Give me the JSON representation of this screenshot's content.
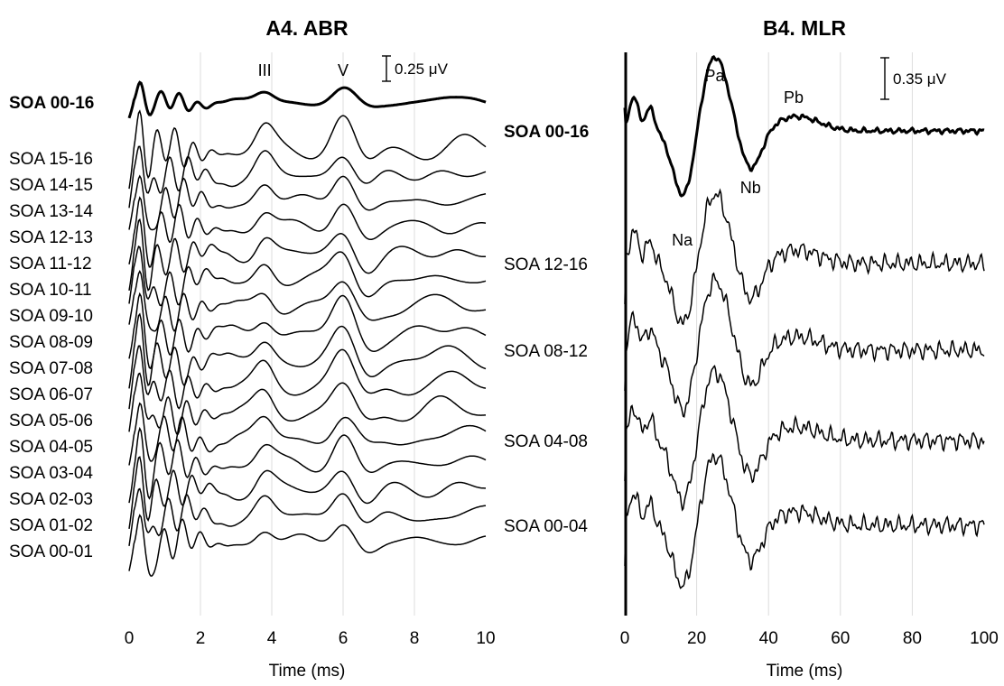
{
  "chart_data": [
    {
      "type": "line",
      "title": "A4. ABR",
      "xlabel": "Time (ms)",
      "xlim": [
        0,
        10
      ],
      "xticks": [
        0,
        2,
        4,
        6,
        8,
        10
      ],
      "grid": true,
      "scale_bar": "0.25 μV",
      "peaks": [
        {
          "label": "III",
          "x": 3.8
        },
        {
          "label": "V",
          "x": 6.0
        }
      ],
      "series": [
        {
          "name": "SOA 00-16",
          "emphasis": true,
          "seed": 1
        },
        {
          "name": "SOA 15-16",
          "seed": 2
        },
        {
          "name": "SOA 14-15",
          "seed": 3
        },
        {
          "name": "SOA 13-14",
          "seed": 4
        },
        {
          "name": "SOA 12-13",
          "seed": 5
        },
        {
          "name": "SOA 11-12",
          "seed": 6
        },
        {
          "name": "SOA 10-11",
          "seed": 7
        },
        {
          "name": "SOA 09-10",
          "seed": 8
        },
        {
          "name": "SOA 08-09",
          "seed": 9
        },
        {
          "name": "SOA 07-08",
          "seed": 10
        },
        {
          "name": "SOA 06-07",
          "seed": 11
        },
        {
          "name": "SOA 05-06",
          "seed": 12
        },
        {
          "name": "SOA 04-05",
          "seed": 13
        },
        {
          "name": "SOA 03-04",
          "seed": 14
        },
        {
          "name": "SOA 02-03",
          "seed": 15
        },
        {
          "name": "SOA 01-02",
          "seed": 16
        },
        {
          "name": "SOA 00-01",
          "seed": 17
        }
      ]
    },
    {
      "type": "line",
      "title": "B4. MLR",
      "xlabel": "Time (ms)",
      "xlim": [
        0,
        100
      ],
      "xticks": [
        0,
        20,
        40,
        60,
        80,
        100
      ],
      "grid": true,
      "scale_bar": "0.35 μV",
      "peaks": [
        {
          "label": "Na",
          "x": 16
        },
        {
          "label": "Pa",
          "x": 25
        },
        {
          "label": "Nb",
          "x": 35
        },
        {
          "label": "Pb",
          "x": 47
        }
      ],
      "series": [
        {
          "name": "SOA 00-16",
          "emphasis": true,
          "seed": 21
        },
        {
          "name": "SOA 12-16",
          "seed": 22
        },
        {
          "name": "SOA 08-12",
          "seed": 23
        },
        {
          "name": "SOA 04-08",
          "seed": 24
        },
        {
          "name": "SOA 00-04",
          "seed": 25
        }
      ]
    }
  ]
}
